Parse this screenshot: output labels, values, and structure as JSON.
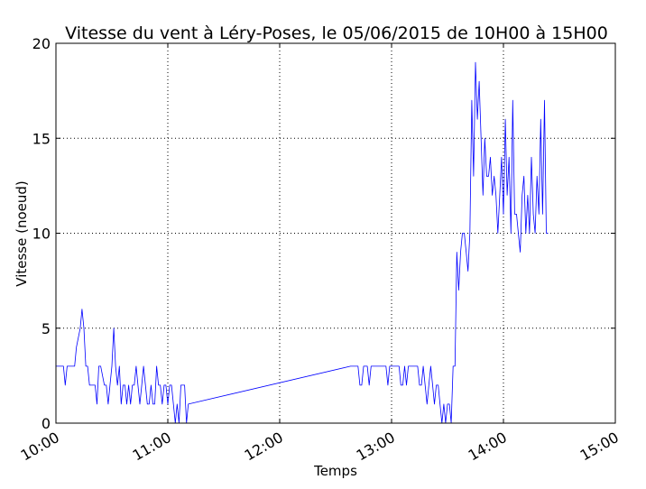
{
  "chart_data": {
    "type": "line",
    "title": "Vitesse du vent à Léry-Poses, le 05/06/2015 de 10H00 à 15H00",
    "xlabel": "Temps",
    "ylabel": "Vitesse (noeud)",
    "xlim": [
      "10:00",
      "15:00"
    ],
    "ylim": [
      0,
      20
    ],
    "x_ticks": [
      "10:00",
      "11:00",
      "12:00",
      "13:00",
      "14:00",
      "15:00"
    ],
    "y_ticks": [
      "0",
      "5",
      "10",
      "15",
      "20"
    ],
    "grid": true,
    "legend": "none",
    "series": [
      {
        "color": "#0000ff",
        "points": [
          [
            "10:00",
            3
          ],
          [
            "10:04",
            3
          ],
          [
            "10:05",
            2
          ],
          [
            "10:06",
            3
          ],
          [
            "10:10",
            3
          ],
          [
            "10:11",
            4
          ],
          [
            "10:13",
            5
          ],
          [
            "10:14",
            6
          ],
          [
            "10:15",
            5
          ],
          [
            "10:16",
            3
          ],
          [
            "10:17",
            3
          ],
          [
            "10:18",
            2
          ],
          [
            "10:21",
            2
          ],
          [
            "10:22",
            1
          ],
          [
            "10:23",
            3
          ],
          [
            "10:24",
            3
          ],
          [
            "10:26",
            2
          ],
          [
            "10:27",
            2
          ],
          [
            "10:28",
            1
          ],
          [
            "10:29",
            2
          ],
          [
            "10:30",
            3
          ],
          [
            "10:31",
            5
          ],
          [
            "10:32",
            3
          ],
          [
            "10:33",
            2
          ],
          [
            "10:34",
            3
          ],
          [
            "10:35",
            1
          ],
          [
            "10:36",
            2
          ],
          [
            "10:37",
            2
          ],
          [
            "10:38",
            1
          ],
          [
            "10:39",
            2
          ],
          [
            "10:40",
            1
          ],
          [
            "10:41",
            2
          ],
          [
            "10:42",
            2
          ],
          [
            "10:43",
            3
          ],
          [
            "10:44",
            2
          ],
          [
            "10:45",
            1
          ],
          [
            "10:46",
            2
          ],
          [
            "10:47",
            3
          ],
          [
            "10:48",
            2
          ],
          [
            "10:49",
            1
          ],
          [
            "10:50",
            1
          ],
          [
            "10:51",
            2
          ],
          [
            "10:52",
            1
          ],
          [
            "10:53",
            1
          ],
          [
            "10:54",
            3
          ],
          [
            "10:55",
            2
          ],
          [
            "10:56",
            2
          ],
          [
            "10:57",
            1
          ],
          [
            "10:58",
            2
          ],
          [
            "10:59",
            2
          ],
          [
            "11:00",
            1
          ],
          [
            "11:01",
            2
          ],
          [
            "11:02",
            2
          ],
          [
            "11:03",
            1
          ],
          [
            "11:04",
            0
          ],
          [
            "11:05",
            1
          ],
          [
            "11:06",
            0
          ],
          [
            "11:07",
            2
          ],
          [
            "11:08",
            2
          ],
          [
            "11:09",
            2
          ],
          [
            "11:10",
            0
          ],
          [
            "11:11",
            1
          ],
          [
            "12:38",
            3
          ],
          [
            "12:42",
            3
          ],
          [
            "12:43",
            2
          ],
          [
            "12:44",
            2
          ],
          [
            "12:45",
            3
          ],
          [
            "12:47",
            3
          ],
          [
            "12:48",
            2
          ],
          [
            "12:49",
            3
          ],
          [
            "12:57",
            3
          ],
          [
            "12:58",
            2
          ],
          [
            "12:59",
            3
          ],
          [
            "13:03",
            3
          ],
          [
            "13:04",
            3
          ],
          [
            "13:05",
            2
          ],
          [
            "13:06",
            2
          ],
          [
            "13:07",
            3
          ],
          [
            "13:08",
            2
          ],
          [
            "13:09",
            3
          ],
          [
            "13:14",
            3
          ],
          [
            "13:15",
            2
          ],
          [
            "13:16",
            2
          ],
          [
            "13:17",
            3
          ],
          [
            "13:18",
            2
          ],
          [
            "13:19",
            1
          ],
          [
            "13:20",
            2
          ],
          [
            "13:21",
            3
          ],
          [
            "13:22",
            2
          ],
          [
            "13:23",
            1
          ],
          [
            "13:24",
            2
          ],
          [
            "13:25",
            2
          ],
          [
            "13:26",
            1
          ],
          [
            "13:27",
            0
          ],
          [
            "13:28",
            1
          ],
          [
            "13:29",
            0
          ],
          [
            "13:30",
            1
          ],
          [
            "13:31",
            1
          ],
          [
            "13:32",
            0
          ],
          [
            "13:33",
            3
          ],
          [
            "13:34",
            3
          ],
          [
            "13:35",
            9
          ],
          [
            "13:36",
            7
          ],
          [
            "13:37",
            9
          ],
          [
            "13:38",
            10
          ],
          [
            "13:39",
            10
          ],
          [
            "13:40",
            9
          ],
          [
            "13:41",
            8
          ],
          [
            "13:42",
            10
          ],
          [
            "13:43",
            17
          ],
          [
            "13:44",
            13
          ],
          [
            "13:45",
            19
          ],
          [
            "13:46",
            16
          ],
          [
            "13:47",
            18
          ],
          [
            "13:48",
            15
          ],
          [
            "13:49",
            12
          ],
          [
            "13:50",
            15
          ],
          [
            "13:51",
            13
          ],
          [
            "13:52",
            13
          ],
          [
            "13:53",
            14
          ],
          [
            "13:54",
            12
          ],
          [
            "13:55",
            13
          ],
          [
            "13:56",
            12
          ],
          [
            "13:57",
            10
          ],
          [
            "13:58",
            12
          ],
          [
            "13:59",
            14
          ],
          [
            "14:00",
            11
          ],
          [
            "14:01",
            16
          ],
          [
            "14:02",
            12
          ],
          [
            "14:03",
            14
          ],
          [
            "14:04",
            10
          ],
          [
            "14:05",
            17
          ],
          [
            "14:06",
            11
          ],
          [
            "14:07",
            11
          ],
          [
            "14:08",
            10
          ],
          [
            "14:09",
            9
          ],
          [
            "14:10",
            12
          ],
          [
            "14:11",
            13
          ],
          [
            "14:12",
            10
          ],
          [
            "14:13",
            12
          ],
          [
            "14:14",
            10
          ],
          [
            "14:15",
            14
          ],
          [
            "14:16",
            11
          ],
          [
            "14:17",
            10
          ],
          [
            "14:18",
            13
          ],
          [
            "14:19",
            11
          ],
          [
            "14:20",
            16
          ],
          [
            "14:21",
            11
          ],
          [
            "14:22",
            17
          ],
          [
            "14:23",
            10
          ],
          [
            "14:24",
            10
          ]
        ]
      }
    ]
  }
}
